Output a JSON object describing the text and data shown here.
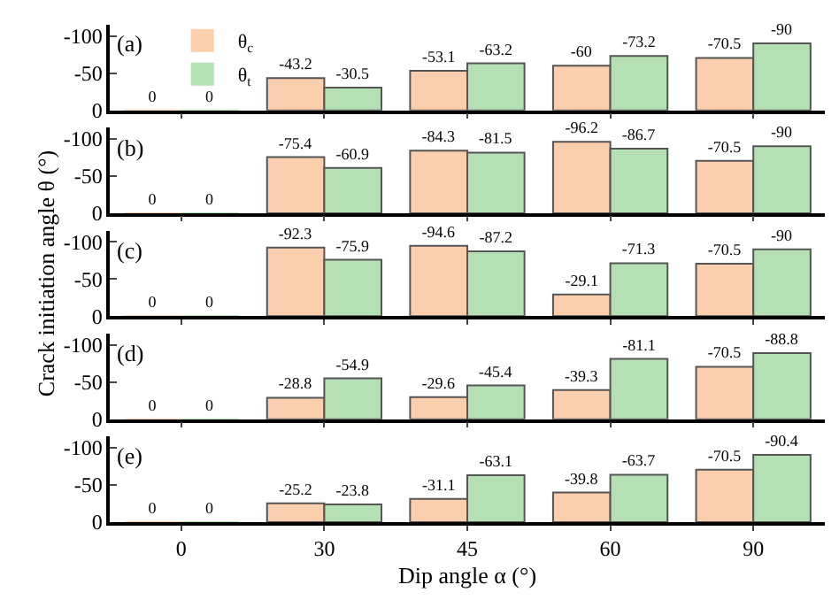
{
  "chart_data": [
    {
      "type": "bar",
      "title": "(a)",
      "categories": [
        "0",
        "30",
        "45",
        "60",
        "90"
      ],
      "ylim": [
        0,
        -115
      ],
      "yticks": [
        0,
        -50,
        -100
      ],
      "tick_labels": "y",
      "data_labels": true,
      "legend": "top left",
      "series": [
        {
          "name": "θ$_{c}$",
          "color": "#fbcfae",
          "values": [
            0,
            -43.2,
            -53.1,
            -60,
            -70.5
          ]
        },
        {
          "name": "θ$_{t}$",
          "color": "#b4e0b4",
          "values": [
            0,
            -30.5,
            -63.2,
            -73.2,
            -90
          ]
        }
      ]
    },
    {
      "type": "bar",
      "title": "(b)",
      "categories": [
        "0",
        "30",
        "45",
        "60",
        "90"
      ],
      "ylim": [
        0,
        -115
      ],
      "yticks": [
        0,
        -50,
        -100
      ],
      "tick_labels": "y",
      "data_labels": true,
      "series": [
        {
          "color": "#fbcfae",
          "values": [
            0,
            -75.4,
            -84.3,
            -96.2,
            -70.5
          ]
        },
        {
          "color": "#b4e0b4",
          "values": [
            0,
            -60.9,
            -81.5,
            -86.7,
            -90
          ]
        }
      ]
    },
    {
      "type": "bar",
      "title": "(c)",
      "categories": [
        "0",
        "30",
        "45",
        "60",
        "90"
      ],
      "ylim": [
        0,
        -115
      ],
      "yticks": [
        0,
        -50,
        -100
      ],
      "tick_labels": "y",
      "data_labels": true,
      "ylabel": "Crack initiation angle θ (°)",
      "series": [
        {
          "color": "#fbcfae",
          "values": [
            0,
            -92.3,
            -94.6,
            -29.1,
            -70.5
          ]
        },
        {
          "color": "#b4e0b4",
          "values": [
            0,
            -75.9,
            -87.2,
            -71.3,
            -90
          ]
        }
      ]
    },
    {
      "type": "bar",
      "title": "(d)",
      "categories": [
        "0",
        "30",
        "45",
        "60",
        "90"
      ],
      "ylim": [
        0,
        -115
      ],
      "yticks": [
        0,
        -50,
        -100
      ],
      "tick_labels": "y",
      "data_labels": true,
      "series": [
        {
          "color": "#fbcfae",
          "values": [
            0,
            -28.8,
            -29.6,
            -39.3,
            -70.5
          ]
        },
        {
          "color": "#b4e0b4",
          "values": [
            0,
            -54.9,
            -45.4,
            -81.1,
            -88.8
          ]
        }
      ]
    },
    {
      "type": "bar",
      "title": "(e)",
      "categories": [
        "0",
        "30",
        "45",
        "60",
        "90"
      ],
      "ylim": [
        0,
        -115
      ],
      "yticks": [
        0,
        -50,
        -100
      ],
      "data_labels": true,
      "xlabel": "Dip angle α (°)",
      "series": [
        {
          "color": "#fbcfae",
          "values": [
            0,
            -25.2,
            -31.1,
            -39.8,
            -70.5
          ]
        },
        {
          "color": "#b4e0b4",
          "values": [
            0,
            -23.8,
            -63.1,
            -63.7,
            -90.4
          ]
        }
      ]
    }
  ]
}
